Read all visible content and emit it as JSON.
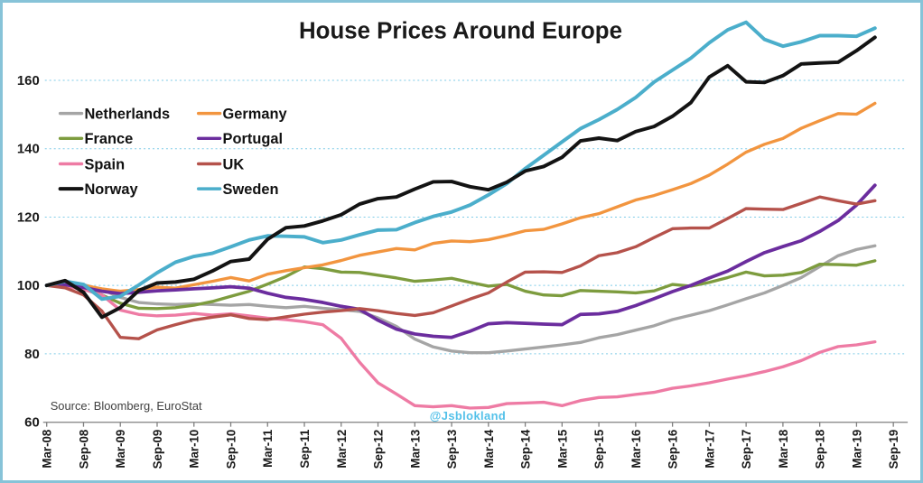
{
  "page": {
    "title": "House Prices Around Europe",
    "source_note": "Source: Bloomberg,  EuroStat",
    "watermark": "@Jsblokland"
  },
  "chart_data": {
    "type": "line",
    "title": "House Prices Around Europe",
    "subtitle": "",
    "xlabel": "",
    "ylabel": "",
    "x_note": "quarterly house-price index points from Mar-08 to Jun-19 (46 points per series), indexed Mar-08 = 100; x tick labels every 6 months",
    "x_tick_labels": [
      "Mar-08",
      "Sep-08",
      "Mar-09",
      "Sep-09",
      "Mar-10",
      "Sep-10",
      "Mar-11",
      "Sep-11",
      "Mar-12",
      "Sep-12",
      "Mar-13",
      "Sep-13",
      "Mar-14",
      "Sep-14",
      "Mar-15",
      "Sep-15",
      "Mar-16",
      "Sep-16",
      "Mar-17",
      "Sep-17",
      "Mar-18",
      "Sep-18",
      "Mar-19",
      "Sep-19"
    ],
    "ylim": [
      60,
      180
    ],
    "yticks": [
      60,
      80,
      100,
      120,
      140,
      160
    ],
    "grid": "horizontal dashed light-blue gridlines at each y tick above 60",
    "grid_color": "#7ecbe7",
    "axis_color": "#7f7f7f",
    "frame_color": "#87c3d8",
    "legend_position": "upper-left, two columns",
    "legend_pairs": [
      [
        "Netherlands",
        "Germany"
      ],
      [
        "France",
        "Portugal"
      ],
      [
        "Spain",
        "UK"
      ],
      [
        "Norway",
        "Sweden"
      ]
    ],
    "series": [
      {
        "name": "Netherlands",
        "color": "#a5a5a5",
        "values": [
          100,
          100.4,
          100.2,
          98.8,
          96.5,
          95.0,
          94.6,
          94.4,
          94.6,
          94.4,
          94.2,
          94.4,
          93.9,
          93.5,
          93.9,
          93.3,
          92.9,
          92.4,
          90.5,
          88.0,
          84.3,
          82.0,
          80.8,
          80.3,
          80.3,
          80.8,
          81.4,
          82.0,
          82.6,
          83.3,
          84.7,
          85.6,
          86.9,
          88.2,
          90.0,
          91.3,
          92.6,
          94.3,
          96.1,
          97.8,
          100.0,
          102.3,
          105.5,
          108.7,
          110.5,
          111.6
        ]
      },
      {
        "name": "France",
        "color": "#7d9c3e",
        "values": [
          100,
          100.3,
          99.3,
          97.2,
          94.8,
          93.3,
          93.2,
          93.5,
          94.2,
          95.3,
          96.8,
          98.3,
          100.4,
          102.6,
          105.4,
          104.9,
          103.9,
          103.8,
          103.0,
          102.2,
          101.2,
          101.6,
          102.1,
          100.9,
          99.8,
          100.3,
          98.3,
          97.2,
          97.0,
          98.5,
          98.3,
          98.1,
          97.8,
          98.4,
          100.3,
          99.8,
          100.9,
          102.3,
          103.9,
          102.8,
          103.0,
          103.8,
          106.2,
          106.1,
          105.9,
          107.2
        ]
      },
      {
        "name": "Spain",
        "color": "#ee7ba4",
        "values": [
          100,
          99.8,
          98.8,
          97.2,
          92.8,
          91.5,
          91.1,
          91.3,
          91.8,
          91.3,
          91.7,
          91.1,
          90.4,
          90.0,
          89.4,
          88.5,
          84.5,
          77.5,
          71.5,
          68.2,
          64.8,
          64.5,
          64.8,
          64.1,
          64.3,
          65.4,
          65.6,
          65.8,
          64.8,
          66.3,
          67.2,
          67.4,
          68.1,
          68.7,
          69.9,
          70.6,
          71.5,
          72.6,
          73.6,
          74.8,
          76.2,
          78.0,
          80.4,
          82.1,
          82.6,
          83.5
        ]
      },
      {
        "name": "Germany",
        "color": "#f2953f",
        "values": [
          100,
          100.3,
          100.0,
          99.0,
          98.3,
          98.8,
          99.5,
          99.2,
          100.2,
          101.2,
          102.3,
          101.3,
          103.3,
          104.3,
          105.2,
          106.0,
          107.3,
          108.8,
          109.8,
          110.8,
          110.4,
          112.3,
          113.0,
          112.8,
          113.4,
          114.6,
          116.0,
          116.4,
          118.0,
          119.8,
          121.0,
          123.0,
          125.0,
          126.3,
          128.0,
          129.8,
          132.3,
          135.5,
          139.0,
          141.3,
          143.0,
          146.0,
          148.2,
          150.3,
          150.1,
          153.3
        ]
      },
      {
        "name": "Portugal",
        "color": "#6b2d9e",
        "values": [
          100,
          100.2,
          99.4,
          98.3,
          97.6,
          98.0,
          98.4,
          98.7,
          99.0,
          99.3,
          99.6,
          99.2,
          97.7,
          96.5,
          95.9,
          95.0,
          93.9,
          93.0,
          89.8,
          87.2,
          85.8,
          85.1,
          84.8,
          86.6,
          88.8,
          89.1,
          88.9,
          88.7,
          88.5,
          91.5,
          91.7,
          92.4,
          94.1,
          96.1,
          98.2,
          100.0,
          102.2,
          104.2,
          107.0,
          109.6,
          111.4,
          113.1,
          115.8,
          119.0,
          123.5,
          129.3
        ]
      },
      {
        "name": "UK",
        "color": "#b5524b",
        "values": [
          100,
          99.3,
          97.2,
          92.5,
          84.8,
          84.4,
          87.0,
          88.5,
          89.9,
          90.7,
          91.4,
          90.3,
          90.0,
          90.8,
          91.6,
          92.2,
          92.6,
          93.2,
          92.6,
          91.8,
          91.2,
          92.0,
          94.0,
          96.0,
          97.8,
          101.0,
          103.9,
          104.0,
          103.8,
          105.7,
          108.7,
          109.6,
          111.3,
          114.0,
          116.6,
          116.8,
          116.8,
          119.6,
          122.5,
          122.3,
          122.2,
          124.0,
          125.9,
          124.8,
          123.8,
          124.8
        ]
      },
      {
        "name": "Sweden",
        "color": "#4baecb",
        "values": [
          100,
          101.2,
          100.3,
          96.0,
          96.8,
          100.1,
          103.7,
          106.8,
          108.5,
          109.4,
          111.3,
          113.3,
          114.5,
          114.4,
          114.2,
          112.5,
          113.3,
          114.8,
          116.2,
          116.3,
          118.4,
          120.2,
          121.5,
          123.5,
          126.5,
          129.8,
          134.2,
          138.1,
          142.0,
          145.9,
          148.5,
          151.5,
          155.0,
          159.5,
          163.0,
          166.5,
          171.0,
          174.8,
          177.0,
          172.0,
          170.0,
          171.3,
          173.1,
          173.1,
          172.9,
          175.3
        ]
      },
      {
        "name": "Norway",
        "color": "#131313",
        "values": [
          100,
          101.4,
          98.0,
          90.7,
          93.5,
          98.5,
          100.7,
          101.0,
          101.8,
          104.2,
          107.0,
          107.7,
          113.5,
          116.9,
          117.4,
          118.9,
          120.7,
          123.8,
          125.4,
          125.9,
          128.2,
          130.3,
          130.4,
          128.9,
          128.0,
          130.2,
          133.5,
          134.8,
          137.5,
          142.3,
          143.1,
          142.4,
          145.0,
          146.5,
          149.5,
          153.5,
          161.0,
          164.3,
          159.6,
          159.4,
          161.4,
          164.8,
          165.1,
          165.3,
          168.7,
          172.6
        ]
      }
    ]
  }
}
